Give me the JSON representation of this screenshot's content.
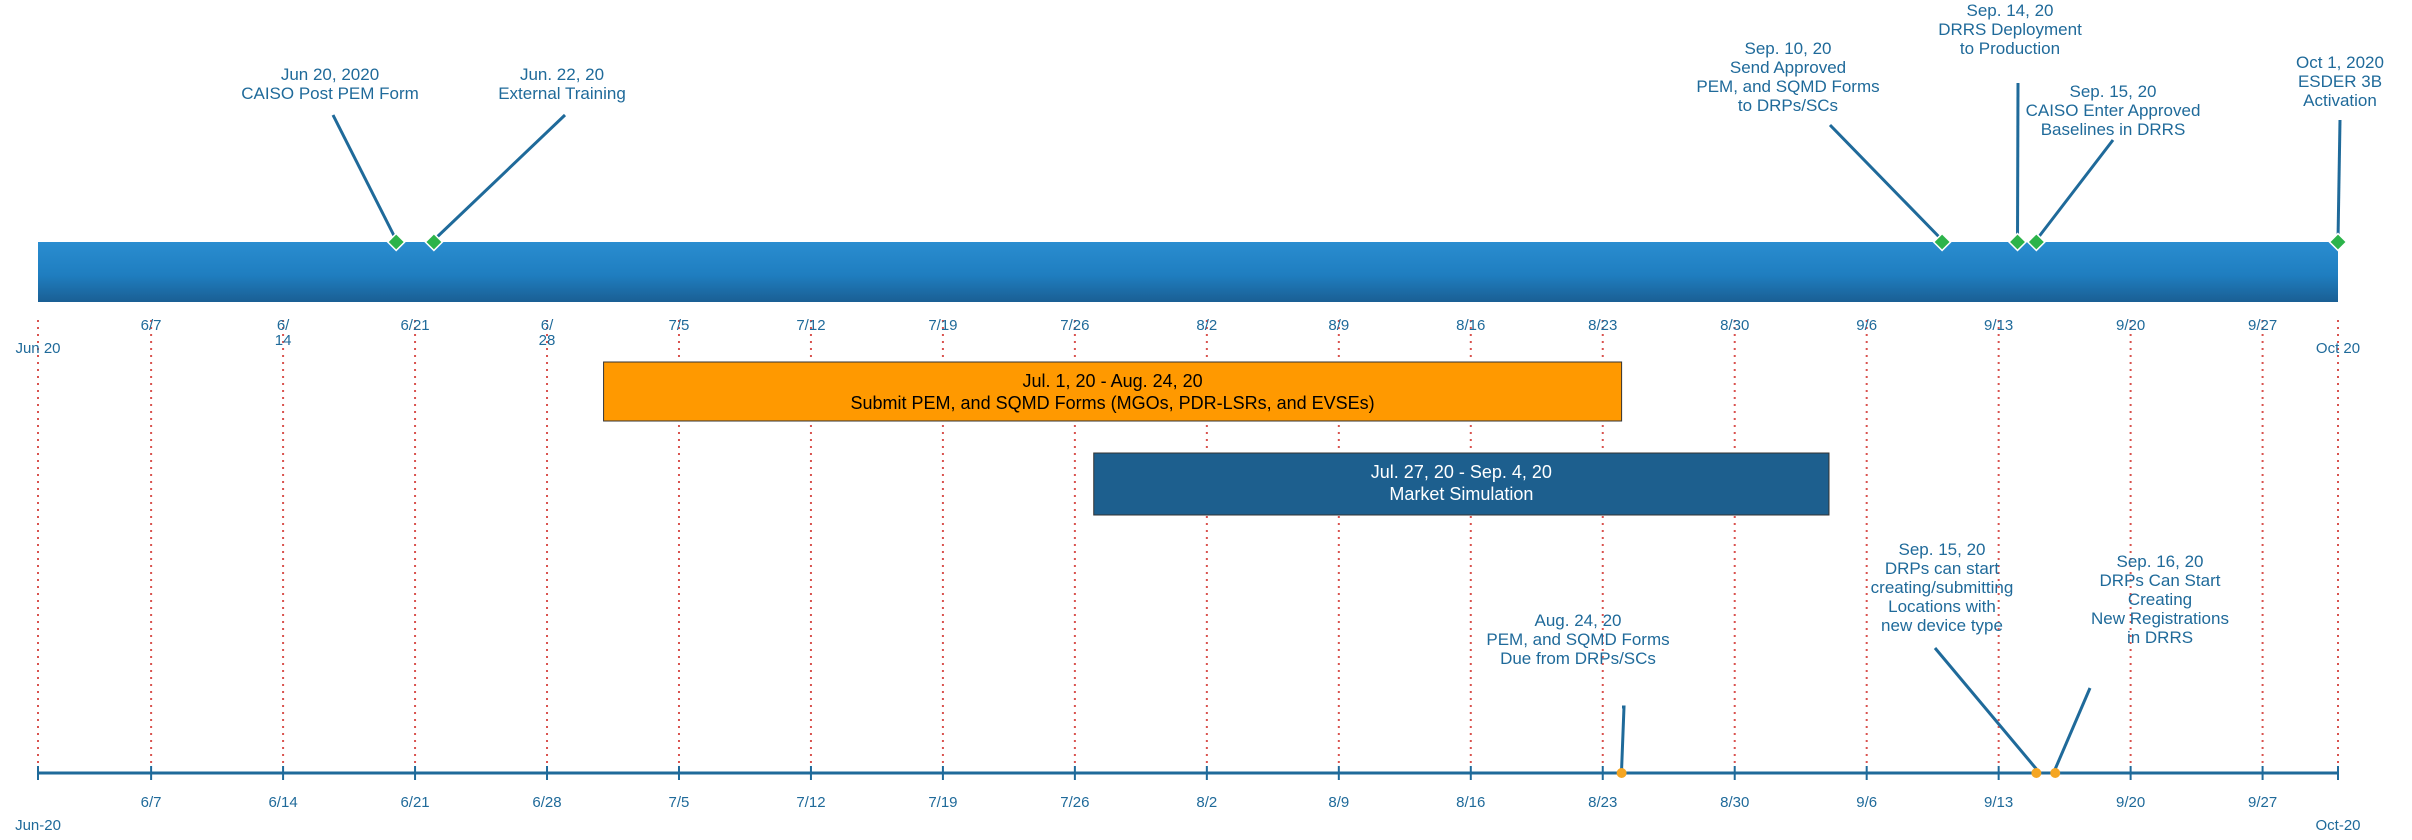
{
  "chart_data": {
    "type": "timeline",
    "axis_range": [
      "2020-06-01",
      "2020-10-01"
    ],
    "grid": "dotted-red-weekly",
    "top_axis": {
      "end_labels": [
        "Jun 20",
        "Oct 20"
      ],
      "tick_labels": [
        {
          "date": "2020-06-07",
          "label": "6/7"
        },
        {
          "date": "2020-06-14",
          "label": "6/\n14"
        },
        {
          "date": "2020-06-21",
          "label": "6/21"
        },
        {
          "date": "2020-06-28",
          "label": "6/\n28"
        },
        {
          "date": "2020-07-05",
          "label": "7/5"
        },
        {
          "date": "2020-07-12",
          "label": "7/12"
        },
        {
          "date": "2020-07-19",
          "label": "7/19"
        },
        {
          "date": "2020-07-26",
          "label": "7/26"
        },
        {
          "date": "2020-08-02",
          "label": "8/2"
        },
        {
          "date": "2020-08-09",
          "label": "8/9"
        },
        {
          "date": "2020-08-16",
          "label": "8/16"
        },
        {
          "date": "2020-08-23",
          "label": "8/23"
        },
        {
          "date": "2020-08-30",
          "label": "8/30"
        },
        {
          "date": "2020-09-06",
          "label": "9/6"
        },
        {
          "date": "2020-09-13",
          "label": "9/13"
        },
        {
          "date": "2020-09-20",
          "label": "9/20"
        },
        {
          "date": "2020-09-27",
          "label": "9/27"
        }
      ]
    },
    "bottom_axis": {
      "end_labels": [
        "Jun-20",
        "Oct-20"
      ],
      "tick_labels": [
        {
          "date": "2020-06-07",
          "label": "6/7"
        },
        {
          "date": "2020-06-14",
          "label": "6/14"
        },
        {
          "date": "2020-06-21",
          "label": "6/21"
        },
        {
          "date": "2020-06-28",
          "label": "6/28"
        },
        {
          "date": "2020-07-05",
          "label": "7/5"
        },
        {
          "date": "2020-07-12",
          "label": "7/12"
        },
        {
          "date": "2020-07-19",
          "label": "7/19"
        },
        {
          "date": "2020-07-26",
          "label": "7/26"
        },
        {
          "date": "2020-08-02",
          "label": "8/2"
        },
        {
          "date": "2020-08-09",
          "label": "8/9"
        },
        {
          "date": "2020-08-16",
          "label": "8/16"
        },
        {
          "date": "2020-08-23",
          "label": "8/23"
        },
        {
          "date": "2020-08-30",
          "label": "8/30"
        },
        {
          "date": "2020-09-06",
          "label": "9/6"
        },
        {
          "date": "2020-09-13",
          "label": "9/13"
        },
        {
          "date": "2020-09-20",
          "label": "9/20"
        },
        {
          "date": "2020-09-27",
          "label": "9/27"
        }
      ]
    },
    "top_milestones": [
      {
        "date": "2020-06-20",
        "label": [
          "Jun 20, 2020",
          "CAISO Post PEM Form"
        ]
      },
      {
        "date": "2020-06-22",
        "label": [
          "Jun. 22, 20",
          "External Training"
        ]
      },
      {
        "date": "2020-09-10",
        "label": [
          "Sep. 10, 20",
          "Send Approved",
          "PEM, and SQMD Forms",
          "to DRPs/SCs"
        ]
      },
      {
        "date": "2020-09-14",
        "label": [
          "Sep. 14, 20",
          "DRRS Deployment",
          "to Production"
        ]
      },
      {
        "date": "2020-09-15",
        "label": [
          "Sep. 15, 20",
          "CAISO Enter Approved",
          "Baselines in DRRS"
        ]
      },
      {
        "date": "2020-10-01",
        "label": [
          "Oct 1, 2020",
          "ESDER 3B",
          "Activation"
        ]
      }
    ],
    "bottom_milestones": [
      {
        "date": "2020-08-24",
        "label": [
          "Aug. 24, 20",
          "PEM, and SQMD Forms",
          "Due from DRPs/SCs"
        ]
      },
      {
        "date": "2020-09-15",
        "label": [
          "Sep. 15, 20",
          "DRPs can start",
          "creating/submitting",
          "Locations with",
          "new device type"
        ]
      },
      {
        "date": "2020-09-16",
        "label": [
          "Sep. 16, 20",
          "DRPs Can Start",
          "Creating",
          "New Registrations",
          "in DRRS"
        ]
      }
    ],
    "spans": [
      {
        "start": "2020-07-01",
        "end": "2020-08-24",
        "label": [
          "Jul. 1, 20 - Aug. 24, 20",
          "Submit PEM, and SQMD Forms (MGOs, PDR-LSRs, and EVSEs)"
        ],
        "color": "#ff9900",
        "text_color": "#000000"
      },
      {
        "start": "2020-07-27",
        "end": "2020-09-04",
        "label": [
          "Jul. 27, 20 - Sep. 4, 20",
          "Market Simulation"
        ],
        "color": "#1d5f8e",
        "text_color": "#ffffff"
      }
    ],
    "colors": {
      "band": "#1f7ec0",
      "axis_line": "#1f6a9a",
      "label_text": "#1f6a9a",
      "grid": "#d9534f",
      "top_marker": "#2cb34a",
      "bottom_marker": "#f5a623"
    }
  }
}
